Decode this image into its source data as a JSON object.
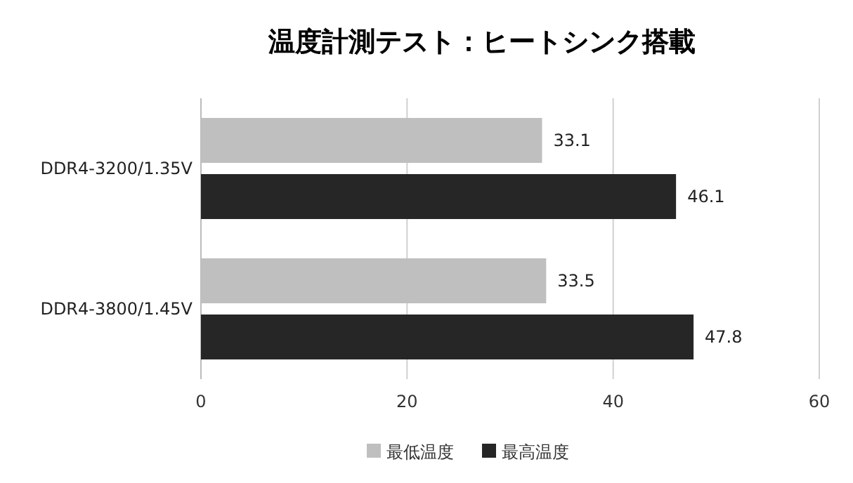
{
  "chart_data": {
    "type": "bar",
    "orientation": "horizontal",
    "title": "温度計測テスト：ヒートシンク搭載",
    "categories": [
      "DDR4-3200/1.35V",
      "DDR4-3800/1.45V"
    ],
    "series": [
      {
        "name": "最低温度",
        "color": "#bfbfbf",
        "values": [
          33.1,
          33.5
        ]
      },
      {
        "name": "最高温度",
        "color": "#262626",
        "values": [
          46.1,
          47.8
        ]
      }
    ],
    "xlim": [
      0,
      60
    ],
    "xticks": [
      0,
      20,
      40,
      60
    ],
    "grid": "x",
    "data_labels": true,
    "legend": "bottom"
  }
}
